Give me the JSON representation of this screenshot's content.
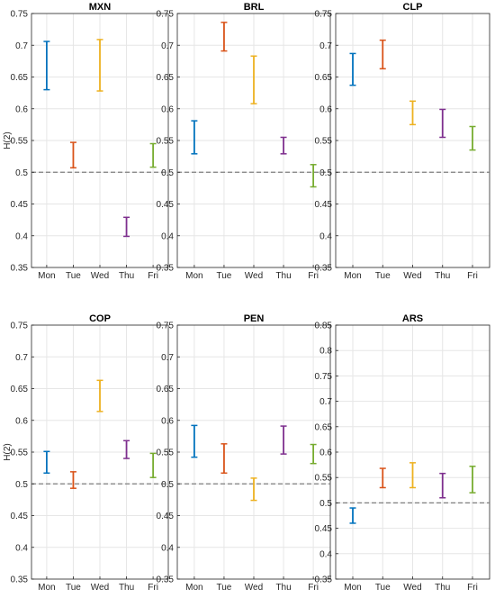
{
  "figure": {
    "shared_ylabel": "H(2)"
  },
  "chart_data": [
    {
      "type": "errorbar",
      "title": "MXN",
      "ylabel": "H(2)",
      "ylim": [
        0.35,
        0.75
      ],
      "yticks": [
        "0.35",
        "0.4",
        "0.45",
        "0.5",
        "0.55",
        "0.6",
        "0.65",
        "0.7",
        "0.75"
      ],
      "categories": [
        "Mon",
        "Tue",
        "Wed",
        "Thu",
        "Fri"
      ],
      "intervals": [
        {
          "low": 0.63,
          "high": 0.706
        },
        {
          "low": 0.507,
          "high": 0.547
        },
        {
          "low": 0.628,
          "high": 0.709
        },
        {
          "low": 0.399,
          "high": 0.429
        },
        {
          "low": 0.508,
          "high": 0.545
        }
      ],
      "reference_line": 0.5,
      "grid": true
    },
    {
      "type": "errorbar",
      "title": "BRL",
      "ylabel": "",
      "ylim": [
        0.35,
        0.75
      ],
      "yticks": [
        "0.35",
        "0.4",
        "0.45",
        "0.5",
        "0.55",
        "0.6",
        "0.65",
        "0.7",
        "0.75"
      ],
      "categories": [
        "Mon",
        "Tue",
        "Wed",
        "Thu",
        "Fri"
      ],
      "intervals": [
        {
          "low": 0.529,
          "high": 0.581
        },
        {
          "low": 0.691,
          "high": 0.736
        },
        {
          "low": 0.608,
          "high": 0.683
        },
        {
          "low": 0.529,
          "high": 0.555
        },
        {
          "low": 0.477,
          "high": 0.512
        }
      ],
      "reference_line": 0.5,
      "grid": true
    },
    {
      "type": "errorbar",
      "title": "CLP",
      "ylabel": "",
      "ylim": [
        0.35,
        0.75
      ],
      "yticks": [
        "0.35",
        "0.4",
        "0.45",
        "0.5",
        "0.55",
        "0.6",
        "0.65",
        "0.7",
        "0.75"
      ],
      "categories": [
        "Mon",
        "Tue",
        "Wed",
        "Thu",
        "Fri"
      ],
      "intervals": [
        {
          "low": 0.637,
          "high": 0.687
        },
        {
          "low": 0.663,
          "high": 0.708
        },
        {
          "low": 0.575,
          "high": 0.612
        },
        {
          "low": 0.555,
          "high": 0.599
        },
        {
          "low": 0.535,
          "high": 0.572
        }
      ],
      "reference_line": 0.5,
      "grid": true
    },
    {
      "type": "errorbar",
      "title": "COP",
      "ylabel": "H(2)",
      "ylim": [
        0.35,
        0.75
      ],
      "yticks": [
        "0.35",
        "0.4",
        "0.45",
        "0.5",
        "0.55",
        "0.6",
        "0.65",
        "0.7",
        "0.75"
      ],
      "categories": [
        "Mon",
        "Tue",
        "Wed",
        "Thu",
        "Fri"
      ],
      "intervals": [
        {
          "low": 0.517,
          "high": 0.551
        },
        {
          "low": 0.493,
          "high": 0.519
        },
        {
          "low": 0.614,
          "high": 0.663
        },
        {
          "low": 0.54,
          "high": 0.568
        },
        {
          "low": 0.51,
          "high": 0.548
        }
      ],
      "reference_line": 0.5,
      "grid": true
    },
    {
      "type": "errorbar",
      "title": "PEN",
      "ylabel": "",
      "ylim": [
        0.35,
        0.75
      ],
      "yticks": [
        "0.35",
        "0.4",
        "0.45",
        "0.5",
        "0.55",
        "0.6",
        "0.65",
        "0.7",
        "0.75"
      ],
      "categories": [
        "Mon",
        "Tue",
        "Wed",
        "Thu",
        "Fri"
      ],
      "intervals": [
        {
          "low": 0.542,
          "high": 0.592
        },
        {
          "low": 0.517,
          "high": 0.563
        },
        {
          "low": 0.474,
          "high": 0.509
        },
        {
          "low": 0.547,
          "high": 0.591
        },
        {
          "low": 0.532,
          "high": 0.562
        }
      ],
      "reference_line": 0.5,
      "grid": true
    },
    {
      "type": "errorbar",
      "title": "ARS",
      "ylabel": "",
      "ylim": [
        0.35,
        0.85
      ],
      "yticks": [
        "0.35",
        "0.4",
        "0.45",
        "0.5",
        "0.55",
        "0.6",
        "0.65",
        "0.7",
        "0.75",
        "0.8",
        "0.85"
      ],
      "categories": [
        "Mon",
        "Tue",
        "Wed",
        "Thu",
        "Fri"
      ],
      "intervals": [
        {
          "low": 0.46,
          "high": 0.49
        },
        {
          "low": 0.53,
          "high": 0.568
        },
        {
          "low": 0.53,
          "high": 0.579
        },
        {
          "low": 0.51,
          "high": 0.558
        },
        {
          "low": 0.52,
          "high": 0.572
        }
      ],
      "reference_line": 0.5,
      "grid": true
    }
  ],
  "colors": {
    "series": [
      "#0072BD",
      "#D95319",
      "#EDB120",
      "#7E2F8E",
      "#77AC30"
    ],
    "axis": "#262626",
    "tick_label": "#262626",
    "grid": "#e6e6e6",
    "reference_line": "#7f7f7f"
  }
}
